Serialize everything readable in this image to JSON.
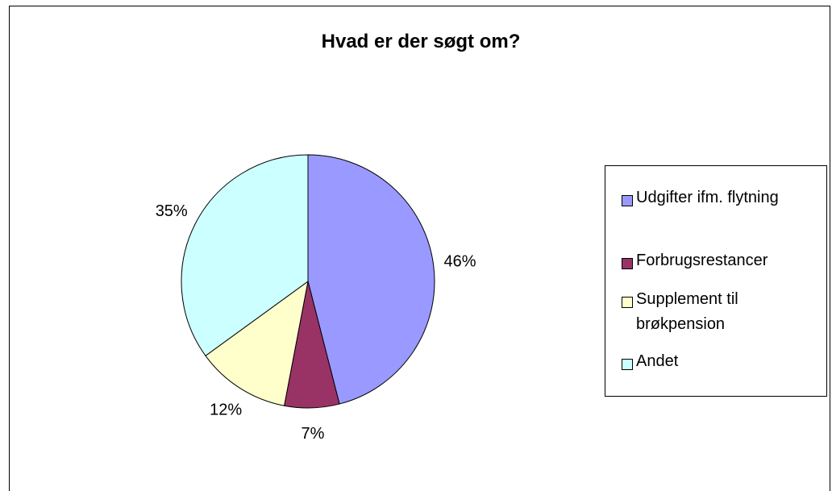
{
  "chart_data": {
    "type": "pie",
    "title": "Hvad er der søgt om?",
    "categories": [
      "Udgifter ifm. flytning",
      "Forbrugsrestancer",
      "Supplement til brøkpension",
      "Andet"
    ],
    "values": [
      46,
      7,
      12,
      35
    ],
    "value_labels": [
      "46%",
      "7%",
      "12%",
      "35%"
    ],
    "colors": [
      "#9999ff",
      "#993366",
      "#ffffcc",
      "#ccffff"
    ],
    "legend": "right"
  }
}
